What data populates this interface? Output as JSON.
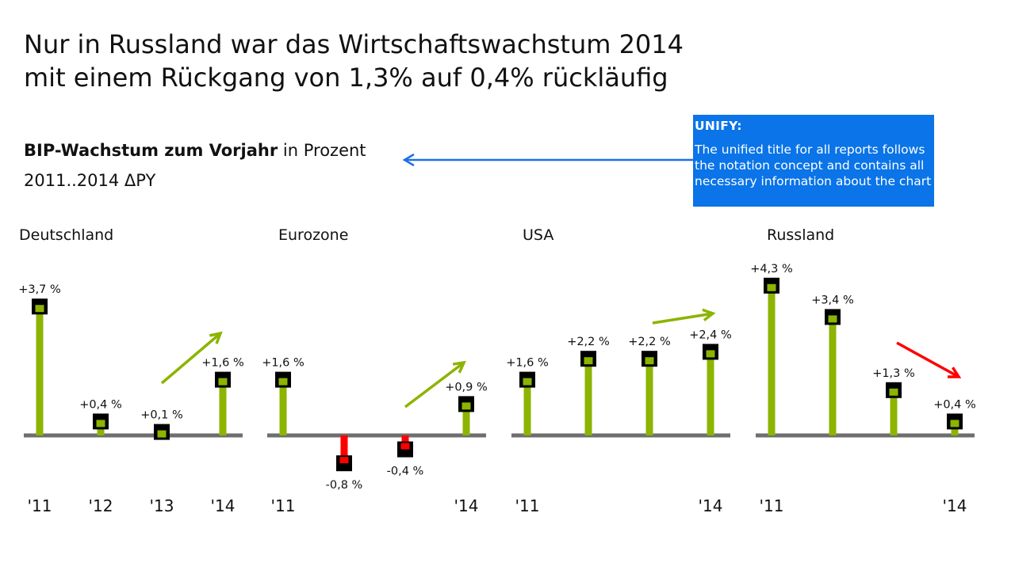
{
  "title": {
    "line1": "Nur in Russland war das Wirtschaftswachstum 2014",
    "line2": "mit einem Rückgang von 1,3% auf 0,4% rückläufig"
  },
  "subtitle": {
    "measure": "BIP-Wachstum zum Vorjahr",
    "unit": "in Prozent",
    "period": "2011..2014 ΔPY"
  },
  "annotation": {
    "heading": "UNIFY:",
    "text": "The unified title for all reports follows the notation concept and contains all necessary information about the chart"
  },
  "colors": {
    "positive": "#8cb400",
    "negative": "#ff0000",
    "marker": "#000000",
    "axis": "#6e6e6e",
    "arrow_note": "#1e6fe6",
    "trend_up": "#8cb400",
    "trend_down": "#ff0000",
    "note_bg": "#0a74e8"
  },
  "chart_data": [
    {
      "type": "bar",
      "title": "Deutschland",
      "categories": [
        "'11",
        "'12",
        "'13",
        "'14"
      ],
      "values": [
        3.7,
        0.4,
        0.1,
        1.6
      ],
      "data_labels": [
        "+3,7 %",
        "+0,4 %",
        "+0,1 %",
        "+1,6 %"
      ],
      "trend": "up"
    },
    {
      "type": "bar",
      "title": "Eurozone",
      "categories": [
        "'11",
        "",
        "",
        "'14"
      ],
      "values": [
        1.6,
        -0.8,
        -0.4,
        0.9
      ],
      "data_labels": [
        "+1,6 %",
        "-0,8 %",
        "-0,4 %",
        "+0,9 %"
      ],
      "trend": "up"
    },
    {
      "type": "bar",
      "title": "USA",
      "categories": [
        "'11",
        "",
        "",
        "'14"
      ],
      "values": [
        1.6,
        2.2,
        2.2,
        2.4
      ],
      "data_labels": [
        "+1,6 %",
        "+2,2 %",
        "+2,2 %",
        "+2,4 %"
      ],
      "trend": "up"
    },
    {
      "type": "bar",
      "title": "Russland",
      "categories": [
        "'11",
        "",
        "",
        "'14"
      ],
      "values": [
        4.3,
        3.4,
        1.3,
        0.4
      ],
      "data_labels": [
        "+4,3 %",
        "+3,4 %",
        "+1,3 %",
        "+0,4 %"
      ],
      "trend": "down"
    }
  ]
}
